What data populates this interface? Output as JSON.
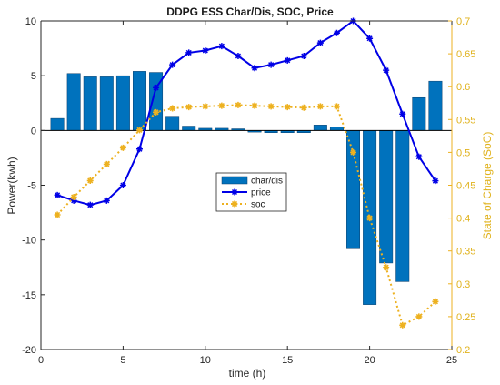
{
  "chart_data": {
    "type": "bar+line",
    "title": "DDPG ESS Char/Dis, SOC, Price",
    "xlabel": "time (h)",
    "ylabel_left": "Power(kwh)",
    "ylabel_right": "State of Charge (SoC)",
    "xlim": [
      0,
      25
    ],
    "ylim_left": [
      -20,
      10
    ],
    "ylim_right": [
      0.2,
      0.7
    ],
    "xticks": [
      0,
      5,
      10,
      15,
      20,
      25
    ],
    "yticks_left": [
      -20,
      -15,
      -10,
      -5,
      0,
      5,
      10
    ],
    "yticks_right": [
      0.2,
      0.25,
      0.3,
      0.35,
      0.4,
      0.45,
      0.5,
      0.55,
      0.6,
      0.65,
      0.7
    ],
    "x": [
      1,
      2,
      3,
      4,
      5,
      6,
      7,
      8,
      9,
      10,
      11,
      12,
      13,
      14,
      15,
      16,
      17,
      18,
      19,
      20,
      21,
      22,
      23,
      24
    ],
    "series": [
      {
        "name": "char/dis",
        "kind": "bar",
        "axis": "left",
        "color": "#0072bd",
        "values": [
          1.1,
          5.2,
          4.9,
          4.9,
          5.0,
          5.4,
          5.3,
          1.3,
          0.4,
          0.2,
          0.2,
          0.15,
          -0.15,
          -0.2,
          -0.2,
          -0.2,
          0.5,
          0.3,
          -10.8,
          -15.9,
          -12.1,
          -13.8,
          3.0,
          4.5
        ]
      },
      {
        "name": "price",
        "kind": "line",
        "axis": "left",
        "color": "#0000e6",
        "marker": "star",
        "values": [
          -5.9,
          -6.4,
          -6.8,
          -6.4,
          -5.0,
          -1.7,
          3.9,
          6.0,
          7.1,
          7.3,
          7.7,
          6.8,
          5.7,
          6.0,
          6.4,
          6.8,
          8.0,
          8.9,
          10.0,
          8.4,
          5.5,
          1.5,
          -2.4,
          -4.6
        ]
      },
      {
        "name": "soc",
        "kind": "line",
        "axis": "right",
        "color": "#edb120",
        "marker": "star",
        "linestyle": "dotted",
        "values": [
          0.405,
          0.432,
          0.457,
          0.482,
          0.507,
          0.534,
          0.561,
          0.567,
          0.569,
          0.57,
          0.571,
          0.572,
          0.571,
          0.57,
          0.569,
          0.568,
          0.57,
          0.57,
          0.5,
          0.4,
          0.325,
          0.237,
          0.25,
          0.273
        ]
      }
    ],
    "legend": {
      "position": "center",
      "entries": [
        "char/dis",
        "price",
        "soc"
      ]
    },
    "grid": false
  }
}
